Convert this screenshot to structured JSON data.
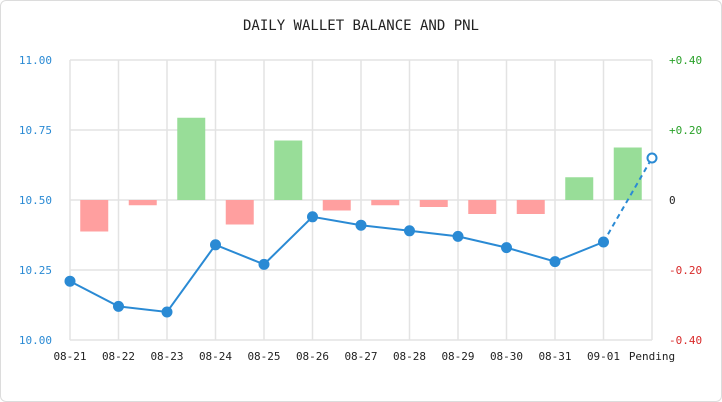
{
  "chart_data": {
    "type": "bar+line",
    "title": "DAILY WALLET BALANCE AND PNL",
    "categories": [
      "08-21",
      "08-22",
      "08-23",
      "08-24",
      "08-25",
      "08-26",
      "08-27",
      "08-28",
      "08-29",
      "08-30",
      "08-31",
      "09-01",
      "Pending"
    ],
    "series": [
      {
        "kind": "line",
        "axis": "left",
        "values": [
          10.21,
          10.12,
          10.1,
          10.34,
          10.27,
          10.44,
          10.41,
          10.39,
          10.37,
          10.33,
          10.28,
          10.35,
          10.65
        ],
        "pending_last": true
      },
      {
        "kind": "bar",
        "axis": "right",
        "values": [
          -0.09,
          -0.015,
          0.235,
          -0.07,
          0.17,
          -0.03,
          -0.015,
          -0.02,
          -0.04,
          -0.04,
          0.065,
          0.15,
          null
        ]
      }
    ],
    "y_left": {
      "ylim": [
        10.0,
        11.0
      ],
      "ticks": [
        10.0,
        10.25,
        10.5,
        10.75,
        11.0
      ],
      "tick_labels": [
        "10.00",
        "10.25",
        "10.50",
        "10.75",
        "11.00"
      ]
    },
    "y_right": {
      "ylim": [
        -0.4,
        0.4
      ],
      "ticks": [
        -0.4,
        -0.2,
        0.0,
        0.2,
        0.4
      ],
      "tick_labels": [
        "-0.40",
        "-0.20",
        "0",
        "+0.20",
        "+0.40"
      ]
    },
    "grid": true,
    "colors": {
      "line": "#2a8ad4",
      "positive_bar": "#98dd98",
      "negative_bar": "#ff9f9f",
      "right_positive_tick": "#2aa12a",
      "right_negative_tick": "#d82a2a",
      "right_zero_tick": "#222222",
      "left_tick": "#2a8ad4"
    }
  }
}
